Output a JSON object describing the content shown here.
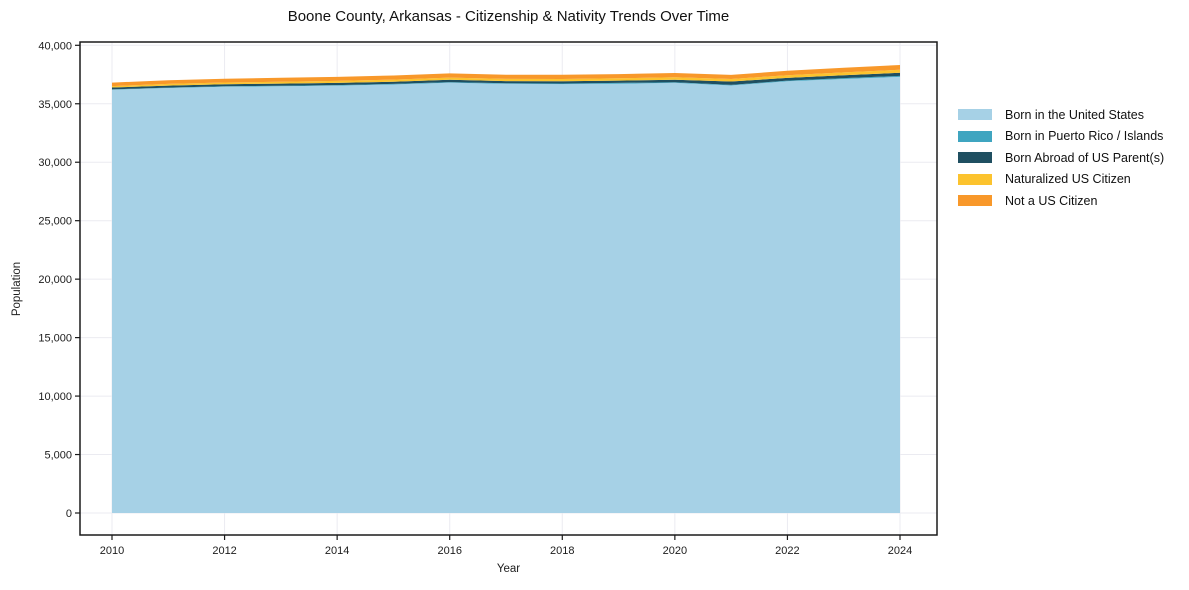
{
  "chart_data": {
    "type": "area",
    "stacked": true,
    "title": "Boone County, Arkansas - Citizenship & Nativity Trends Over Time",
    "xlabel": "Year",
    "ylabel": "Population",
    "x": [
      2010,
      2011,
      2012,
      2013,
      2014,
      2015,
      2016,
      2017,
      2018,
      2019,
      2020,
      2021,
      2022,
      2023,
      2024
    ],
    "xticks": [
      2010,
      2012,
      2014,
      2016,
      2018,
      2020,
      2022,
      2024
    ],
    "yticks": [
      0,
      5000,
      10000,
      15000,
      20000,
      25000,
      30000,
      35000,
      40000
    ],
    "ylim": [
      0,
      40000
    ],
    "grid": true,
    "legend_position": "right",
    "series": [
      {
        "name": "Born in the United States",
        "color": "#a6d1e6",
        "values": [
          36200,
          36350,
          36450,
          36500,
          36550,
          36650,
          36800,
          36700,
          36680,
          36720,
          36780,
          36560,
          36920,
          37120,
          37300
        ]
      },
      {
        "name": "Born in Puerto Rico / Islands",
        "color": "#3fa5c0",
        "values": [
          30,
          35,
          40,
          45,
          50,
          50,
          55,
          50,
          55,
          60,
          60,
          55,
          65,
          75,
          85
        ]
      },
      {
        "name": "Born Abroad of US Parent(s)",
        "color": "#1f4f61",
        "values": [
          160,
          170,
          175,
          180,
          185,
          190,
          195,
          190,
          195,
          200,
          210,
          290,
          230,
          245,
          260
        ]
      },
      {
        "name": "Naturalized US Citizen",
        "color": "#fcc32e",
        "values": [
          120,
          140,
          150,
          160,
          170,
          180,
          190,
          185,
          190,
          200,
          215,
          210,
          225,
          240,
          260
        ]
      },
      {
        "name": "Not a US Citizen",
        "color": "#f8982a",
        "values": [
          300,
          320,
          330,
          335,
          340,
          350,
          360,
          350,
          355,
          360,
          370,
          350,
          380,
          395,
          410
        ]
      }
    ],
    "style": {
      "grid_color": "#ebebf1",
      "spine_color": "#1a1a1a",
      "tick_label_color": "#1c1c1c"
    }
  }
}
